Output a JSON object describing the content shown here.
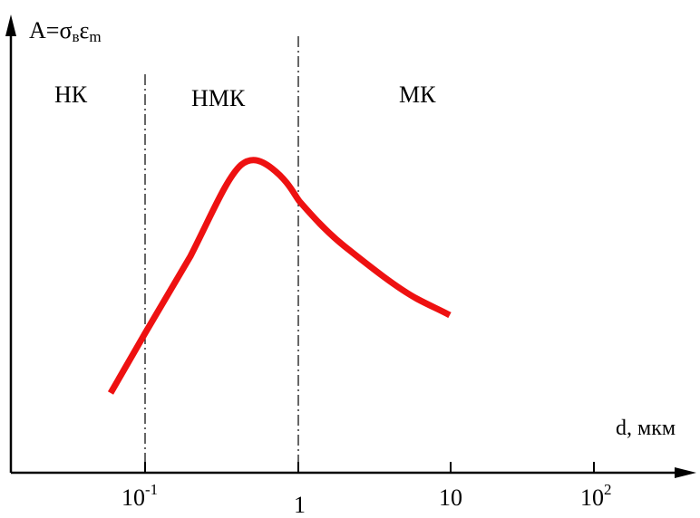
{
  "y_axis": {
    "label_base": "A=σ",
    "label_sub1": "в",
    "label_mid": "ε",
    "label_sub2": "m"
  },
  "x_axis": {
    "label": "d, мкм"
  },
  "ticks": [
    {
      "base": "10",
      "exp": "-1"
    },
    {
      "base": "1",
      "exp": ""
    },
    {
      "base": "10",
      "exp": ""
    },
    {
      "base": "10",
      "exp": "2"
    }
  ],
  "regions": [
    {
      "label": "НК"
    },
    {
      "label": "НМК"
    },
    {
      "label": "МК"
    }
  ],
  "colors": {
    "curve": "#ee1111",
    "axis": "#000000",
    "divider": "#000000"
  }
}
